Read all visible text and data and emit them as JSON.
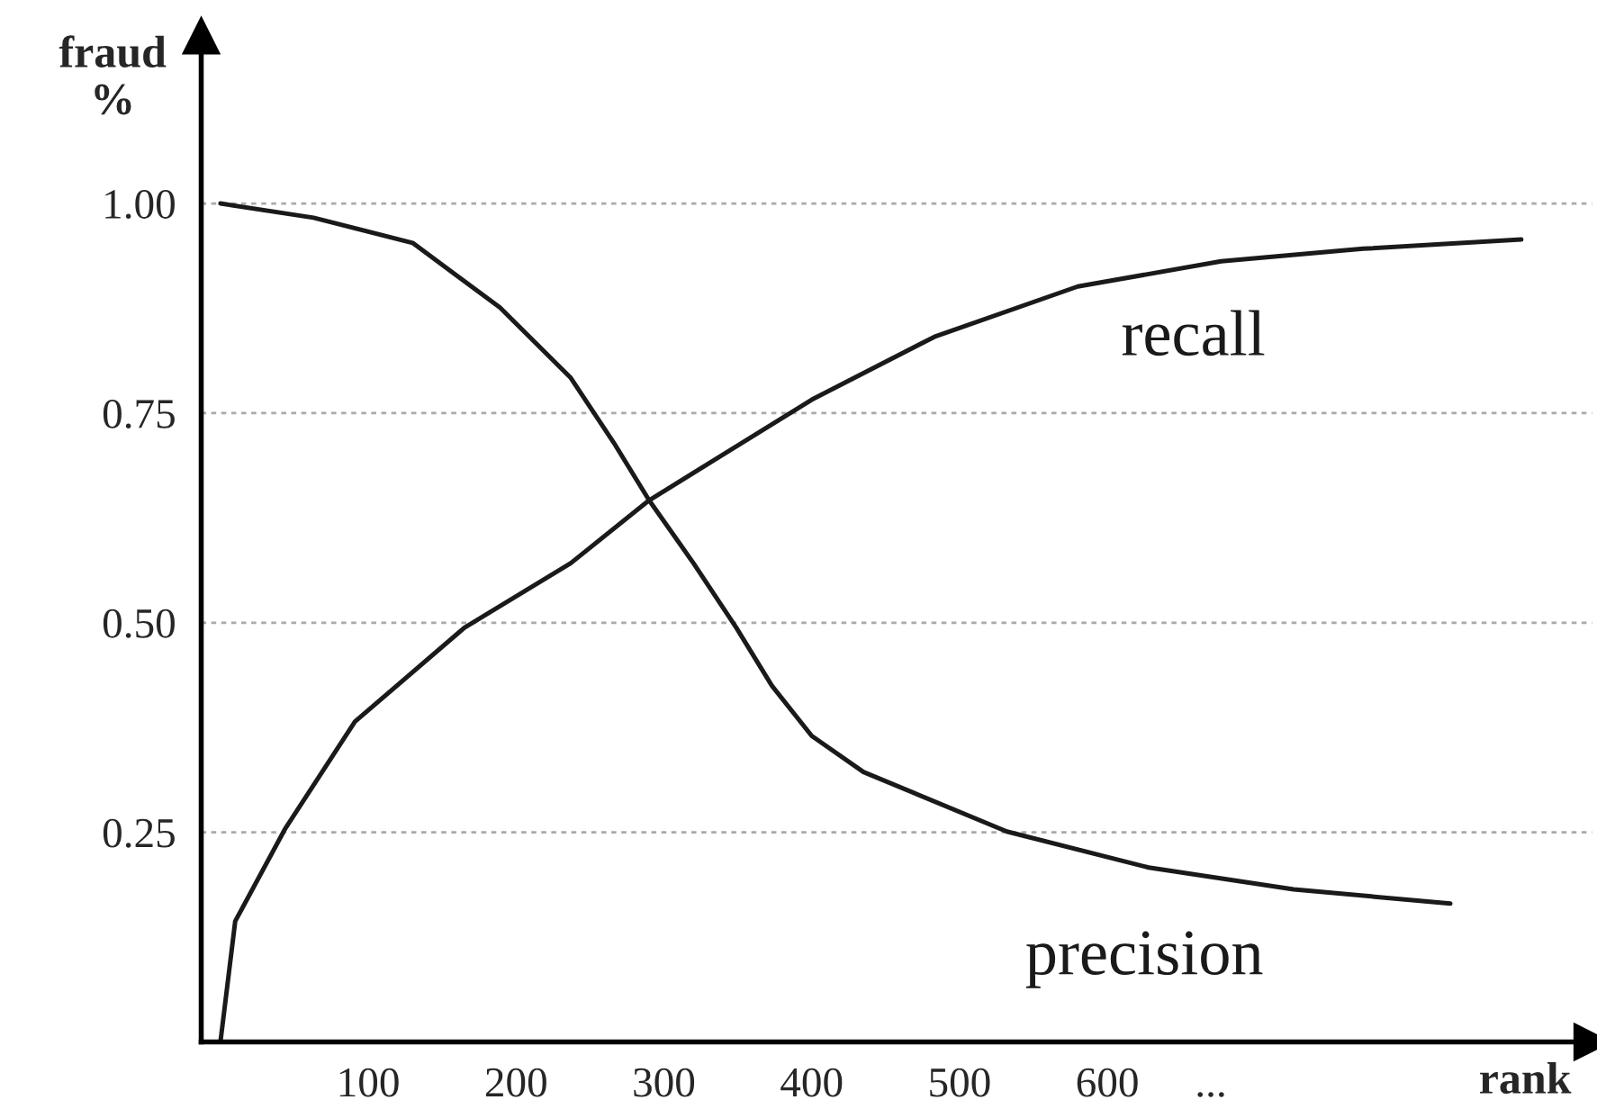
{
  "chart_data": {
    "type": "line",
    "xlabel": "rank",
    "ylabel": "fraud\n%",
    "xlim": [
      -13,
      928
    ],
    "ylim": [
      0,
      1.2
    ],
    "xticks": [
      100,
      200,
      300,
      400,
      500,
      600,
      {
        "value": 670,
        "label": "..."
      }
    ],
    "yticks": [
      {
        "value": 0.25,
        "label": "0.25"
      },
      {
        "value": 0.5,
        "label": "0.50"
      },
      {
        "value": 0.75,
        "label": "0.75"
      },
      {
        "value": 1.0,
        "label": "1.00"
      }
    ],
    "grid": "y",
    "line_style": "solid",
    "marker": "none",
    "series": [
      {
        "name": "precision",
        "color": "#1a1a1a",
        "x": [
          0,
          63,
          130,
          189,
          237,
          266,
          290,
          320,
          349,
          373,
          400,
          435,
          532,
          628,
          726,
          832
        ],
        "values": [
          1.0,
          0.983,
          0.953,
          0.876,
          0.792,
          0.715,
          0.646,
          0.571,
          0.494,
          0.425,
          0.365,
          0.322,
          0.251,
          0.208,
          0.182,
          0.165
        ]
      },
      {
        "name": "recall",
        "color": "#1a1a1a",
        "x": [
          0,
          10,
          44,
          91,
          165,
          237,
          290,
          400,
          483,
          580,
          677,
          773,
          880
        ],
        "values": [
          0.0,
          0.144,
          0.255,
          0.382,
          0.494,
          0.571,
          0.646,
          0.766,
          0.841,
          0.901,
          0.931,
          0.946,
          0.957
        ]
      }
    ]
  }
}
